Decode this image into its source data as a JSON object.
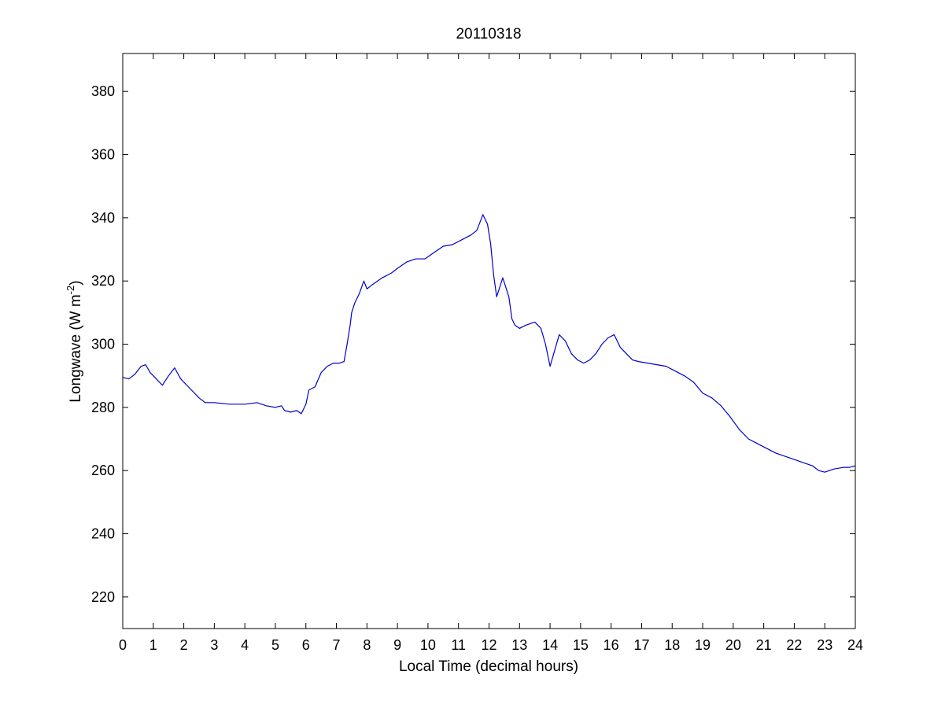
{
  "chart_data": {
    "type": "line",
    "title": "20110318",
    "xlabel": "Local Time (decimal hours)",
    "ylabel_main": "Longwave (W m",
    "ylabel_sup": "-2",
    "ylabel_close": ")",
    "xlim": [
      0,
      24
    ],
    "ylim": [
      210,
      392
    ],
    "xticks": [
      0,
      1,
      2,
      3,
      4,
      5,
      6,
      7,
      8,
      9,
      10,
      11,
      12,
      13,
      14,
      15,
      16,
      17,
      18,
      19,
      20,
      21,
      22,
      23,
      24
    ],
    "yticks": [
      220,
      240,
      260,
      280,
      300,
      320,
      340,
      360,
      380
    ],
    "grid": false,
    "series": [
      {
        "color": "#0000cc",
        "x": [
          0,
          0.2,
          0.4,
          0.6,
          0.75,
          0.9,
          1.1,
          1.3,
          1.5,
          1.7,
          1.9,
          2.1,
          2.3,
          2.5,
          2.7,
          3.0,
          3.5,
          4.0,
          4.4,
          4.7,
          5.0,
          5.2,
          5.3,
          5.5,
          5.7,
          5.85,
          6.0,
          6.1,
          6.3,
          6.5,
          6.7,
          6.9,
          7.1,
          7.25,
          7.35,
          7.45,
          7.5,
          7.6,
          7.75,
          7.9,
          8.0,
          8.2,
          8.5,
          8.8,
          9.0,
          9.3,
          9.6,
          9.9,
          10.2,
          10.5,
          10.8,
          11.1,
          11.4,
          11.6,
          11.8,
          11.95,
          12.05,
          12.15,
          12.25,
          12.35,
          12.45,
          12.55,
          12.65,
          12.75,
          12.85,
          13.0,
          13.2,
          13.5,
          13.7,
          13.85,
          14.0,
          14.15,
          14.3,
          14.5,
          14.7,
          14.9,
          15.1,
          15.3,
          15.5,
          15.7,
          15.9,
          16.1,
          16.3,
          16.5,
          16.7,
          16.9,
          17.2,
          17.5,
          17.8,
          18.1,
          18.4,
          18.7,
          19.0,
          19.3,
          19.6,
          19.9,
          20.2,
          20.5,
          20.8,
          21.1,
          21.4,
          21.7,
          22.0,
          22.3,
          22.6,
          22.8,
          23.0,
          23.3,
          23.6,
          23.8,
          24.0
        ],
        "y": [
          289.5,
          289.0,
          290.5,
          293.0,
          293.5,
          291.0,
          289.0,
          287.0,
          290.0,
          292.5,
          289.0,
          287.0,
          285.0,
          283.0,
          281.5,
          281.5,
          281.0,
          281.0,
          281.5,
          280.5,
          280.0,
          280.5,
          279.0,
          278.5,
          279.0,
          278.0,
          281.0,
          285.5,
          286.5,
          291.0,
          293.0,
          294.0,
          294.0,
          294.5,
          300.0,
          306.0,
          310.0,
          313.0,
          316.0,
          320.0,
          317.5,
          319.0,
          321.0,
          322.5,
          324.0,
          326.0,
          327.0,
          327.0,
          329.0,
          331.0,
          331.5,
          333.0,
          334.5,
          336.0,
          341.0,
          338.0,
          332.0,
          322.0,
          315.0,
          318.0,
          321.0,
          318.0,
          315.0,
          308.0,
          306.0,
          305.0,
          306.0,
          307.0,
          305.0,
          300.0,
          293.0,
          298.0,
          303.0,
          301.0,
          297.0,
          295.0,
          294.0,
          295.0,
          297.0,
          300.0,
          302.0,
          303.0,
          299.0,
          297.0,
          295.0,
          294.5,
          294.0,
          293.5,
          293.0,
          291.5,
          290.0,
          288.0,
          284.5,
          283.0,
          280.5,
          277.0,
          273.0,
          270.0,
          268.5,
          267.0,
          265.5,
          264.5,
          263.5,
          262.5,
          261.5,
          260.0,
          259.5,
          260.5,
          261.0,
          261.0,
          261.5
        ]
      }
    ]
  }
}
